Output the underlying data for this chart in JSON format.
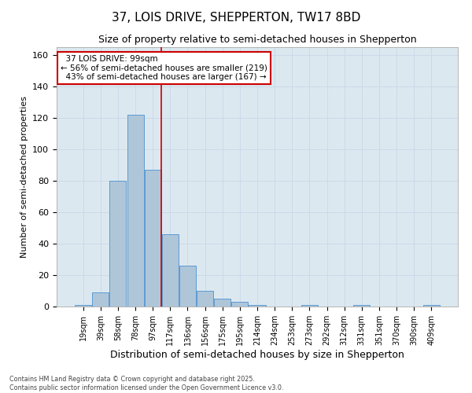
{
  "title": "37, LOIS DRIVE, SHEPPERTON, TW17 8BD",
  "subtitle": "Size of property relative to semi-detached houses in Shepperton",
  "xlabel": "Distribution of semi-detached houses by size in Shepperton",
  "ylabel": "Number of semi-detached properties",
  "bins": [
    "19sqm",
    "39sqm",
    "58sqm",
    "78sqm",
    "97sqm",
    "117sqm",
    "136sqm",
    "156sqm",
    "175sqm",
    "195sqm",
    "214sqm",
    "234sqm",
    "253sqm",
    "273sqm",
    "292sqm",
    "312sqm",
    "331sqm",
    "351sqm",
    "370sqm",
    "390sqm",
    "409sqm"
  ],
  "values": [
    1,
    9,
    80,
    122,
    87,
    46,
    26,
    10,
    5,
    3,
    1,
    0,
    0,
    1,
    0,
    0,
    1,
    0,
    0,
    0,
    1
  ],
  "bar_color": "#aec6d8",
  "bar_edge_color": "#5b9bd5",
  "annotation_text": "  37 LOIS DRIVE: 99sqm\n← 56% of semi-detached houses are smaller (219)\n  43% of semi-detached houses are larger (167) →",
  "annotation_box_color": "#ffffff",
  "annotation_box_edge": "#cc0000",
  "vline_color": "#cc0000",
  "vline_x_index": 4,
  "ylim": [
    0,
    165
  ],
  "yticks": [
    0,
    20,
    40,
    60,
    80,
    100,
    120,
    140,
    160
  ],
  "grid_color": "#ccd9e8",
  "background_color": "#dce8f0",
  "footer_text": "Contains HM Land Registry data © Crown copyright and database right 2025.\nContains public sector information licensed under the Open Government Licence v3.0.",
  "title_fontsize": 11,
  "subtitle_fontsize": 9,
  "xlabel_fontsize": 9,
  "ylabel_fontsize": 8,
  "annotation_fontsize": 7.5
}
